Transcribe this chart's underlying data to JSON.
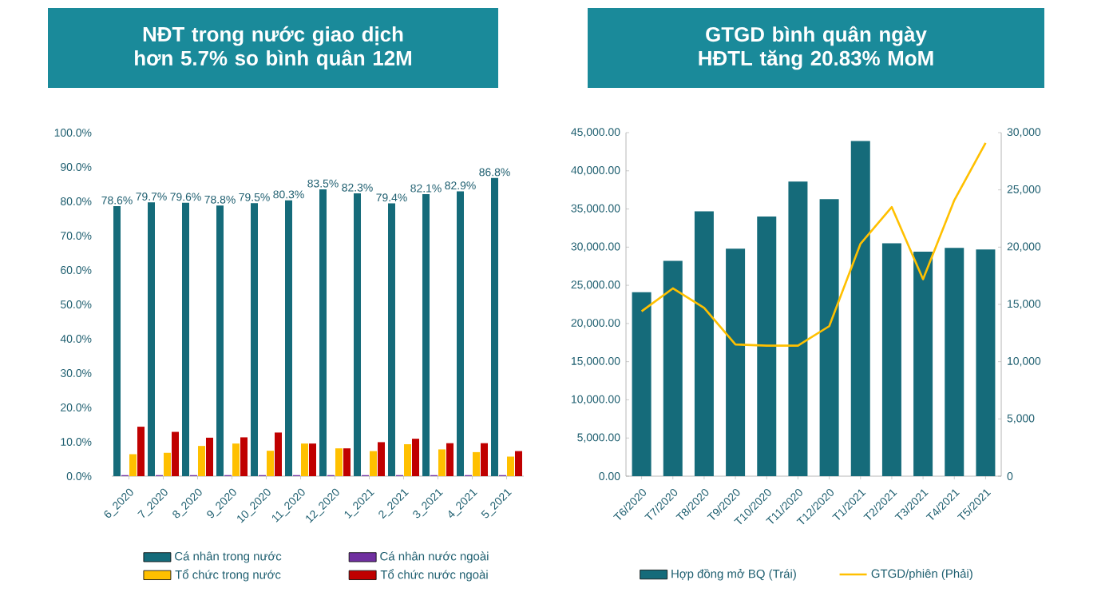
{
  "chart_data": [
    {
      "type": "bar",
      "title": "NĐT trong nước giao dịch hơn 5.7% so bình quân 12M",
      "categories": [
        "6_2020",
        "7_2020",
        "8_2020",
        "9_2020",
        "10_2020",
        "11_2020",
        "12_2020",
        "1_2021",
        "2_2021",
        "3_2021",
        "4_2021",
        "5_2021"
      ],
      "series": [
        {
          "name": "Cá nhân trong nước",
          "color": "#156b7a",
          "values": [
            78.6,
            79.7,
            79.6,
            78.8,
            79.5,
            80.3,
            83.5,
            82.3,
            79.4,
            82.1,
            82.9,
            86.8
          ],
          "value_labels": [
            "78.6%",
            "79.7%",
            "79.6%",
            "78.8%",
            "79.5%",
            "80.3%",
            "83.5%",
            "82.3%",
            "79.4%",
            "82.1%",
            "82.9%",
            "86.8%"
          ]
        },
        {
          "name": "Cá nhân nước ngoài",
          "color": "#7030a0",
          "values": [
            0.3,
            0.3,
            0.3,
            0.3,
            0.3,
            0.3,
            0.3,
            0.3,
            0.3,
            0.3,
            0.3,
            0.3
          ]
        },
        {
          "name": "Tổ chức trong nước",
          "color": "#ffc000",
          "values": [
            6.4,
            6.8,
            8.8,
            9.5,
            7.4,
            9.5,
            8.1,
            7.3,
            9.3,
            7.8,
            7.0,
            5.7
          ]
        },
        {
          "name": "Tổ chức nước ngoài",
          "color": "#c00000",
          "values": [
            14.4,
            12.9,
            11.2,
            11.3,
            12.7,
            9.5,
            8.1,
            9.9,
            10.9,
            9.6,
            9.6,
            7.3
          ]
        }
      ],
      "ylim": [
        0,
        100
      ],
      "yticks": [
        {
          "value": 0,
          "label": "0.0%"
        },
        {
          "value": 10,
          "label": "10.0%"
        },
        {
          "value": 20,
          "label": "20.0%"
        },
        {
          "value": 30,
          "label": "30.0%"
        },
        {
          "value": 40,
          "label": "40.0%"
        },
        {
          "value": 50,
          "label": "50.0%"
        },
        {
          "value": 60,
          "label": "60.0%"
        },
        {
          "value": 70,
          "label": "70.0%"
        },
        {
          "value": 80,
          "label": "80.0%"
        },
        {
          "value": 90,
          "label": "90.0%"
        },
        {
          "value": 100,
          "label": "100.0%"
        }
      ],
      "legend": "bottom"
    },
    {
      "type": "bar",
      "title": "GTGD bình quân ngày HĐTL tăng 20.83% MoM",
      "categories": [
        "T6/2020",
        "T7/2020",
        "T8/2020",
        "T9/2020",
        "T10/2020",
        "T11/2020",
        "T12/2020",
        "T1/2021",
        "T2/2021",
        "T3/2021",
        "T4/2021",
        "T5/2021"
      ],
      "series": [
        {
          "name": "Hợp đồng mở BQ (Trái)",
          "color": "#156b7a",
          "values": [
            24100,
            28200,
            34700,
            29800,
            34000,
            38600,
            36300,
            43900,
            30500,
            29400,
            29900,
            29700
          ]
        },
        {
          "name": "GTGD/phiên (Phải)",
          "type": "line",
          "axis": "y2",
          "color": "#ffc000",
          "values": [
            14400,
            16400,
            14700,
            11500,
            11400,
            11400,
            13100,
            20300,
            23500,
            17200,
            24100,
            29100
          ]
        }
      ],
      "ylim": [
        0,
        45000
      ],
      "yticks": [
        {
          "value": 0,
          "label": "0.00"
        },
        {
          "value": 5000,
          "label": "5,000.00"
        },
        {
          "value": 10000,
          "label": "10,000.00"
        },
        {
          "value": 15000,
          "label": "15,000.00"
        },
        {
          "value": 20000,
          "label": "20,000.00"
        },
        {
          "value": 25000,
          "label": "25,000.00"
        },
        {
          "value": 30000,
          "label": "30,000.00"
        },
        {
          "value": 35000,
          "label": "35,000.00"
        },
        {
          "value": 40000,
          "label": "40,000.00"
        },
        {
          "value": 45000,
          "label": "45,000.00"
        }
      ],
      "y2lim": [
        0,
        30000
      ],
      "y2ticks": [
        0,
        {
          "value": 5000,
          "label": "5,000"
        },
        {
          "value": 10000,
          "label": "10,000"
        },
        {
          "value": 15000,
          "label": "15,000"
        },
        {
          "value": 20000,
          "label": "20,000"
        },
        {
          "value": 25000,
          "label": "25,000"
        },
        {
          "value": 30000,
          "label": "30,000"
        }
      ],
      "legend": "bottom"
    }
  ]
}
